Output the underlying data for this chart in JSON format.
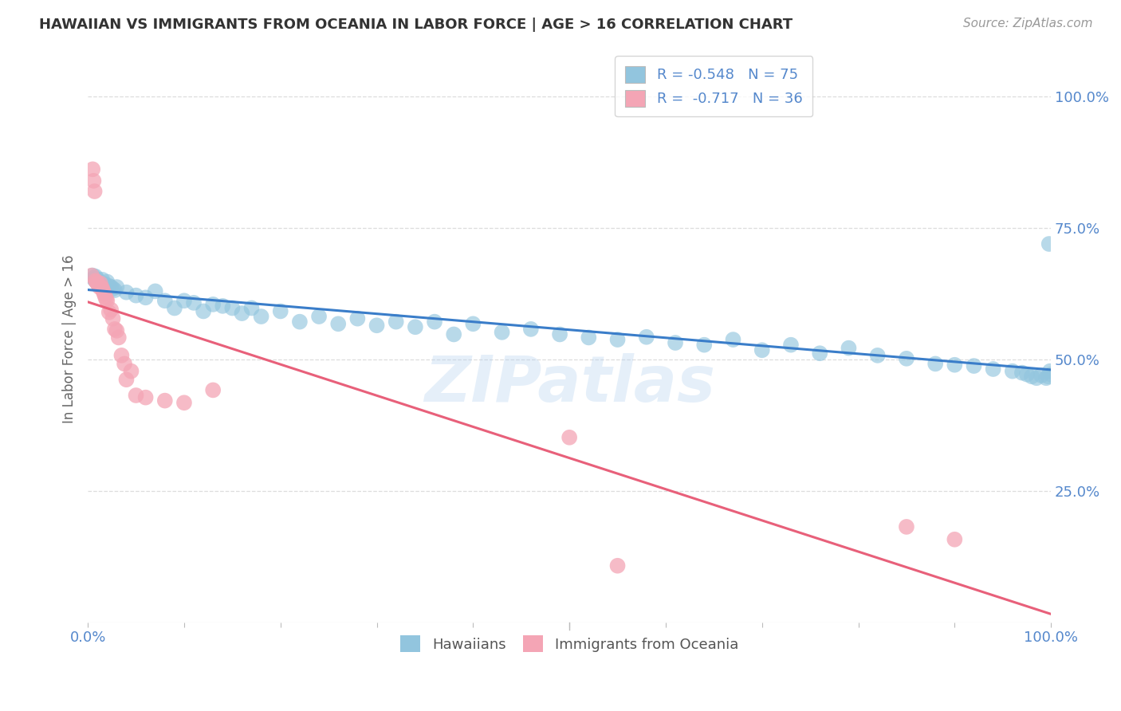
{
  "title": "HAWAIIAN VS IMMIGRANTS FROM OCEANIA IN LABOR FORCE | AGE > 16 CORRELATION CHART",
  "source": "Source: ZipAtlas.com",
  "ylabel": "In Labor Force | Age > 16",
  "legend_hawaiians": "Hawaiians",
  "legend_immigrants": "Immigrants from Oceania",
  "R_hawaiians": -0.548,
  "N_hawaiians": 75,
  "R_immigrants": -0.717,
  "N_immigrants": 36,
  "watermark": "ZIPatlas",
  "blue_color": "#92c5de",
  "pink_color": "#f4a5b5",
  "blue_line_color": "#3a7dc9",
  "pink_line_color": "#e8607a",
  "title_color": "#333333",
  "axis_label_color": "#5588cc",
  "grid_color": "#dddddd",
  "hawaiians_x": [
    0.005,
    0.006,
    0.007,
    0.008,
    0.009,
    0.01,
    0.011,
    0.012,
    0.013,
    0.015,
    0.016,
    0.017,
    0.018,
    0.02,
    0.022,
    0.024,
    0.026,
    0.028,
    0.03,
    0.04,
    0.05,
    0.06,
    0.07,
    0.08,
    0.09,
    0.1,
    0.11,
    0.12,
    0.13,
    0.14,
    0.15,
    0.16,
    0.17,
    0.18,
    0.2,
    0.22,
    0.24,
    0.26,
    0.28,
    0.3,
    0.32,
    0.34,
    0.36,
    0.38,
    0.4,
    0.43,
    0.46,
    0.49,
    0.52,
    0.55,
    0.58,
    0.61,
    0.64,
    0.67,
    0.7,
    0.73,
    0.76,
    0.79,
    0.82,
    0.85,
    0.88,
    0.9,
    0.92,
    0.94,
    0.96,
    0.97,
    0.975,
    0.98,
    0.985,
    0.99,
    0.995,
    0.997,
    0.998,
    0.999,
    1.0
  ],
  "hawaiians_y": [
    0.66,
    0.655,
    0.652,
    0.658,
    0.648,
    0.653,
    0.648,
    0.645,
    0.643,
    0.652,
    0.645,
    0.638,
    0.643,
    0.648,
    0.64,
    0.638,
    0.635,
    0.632,
    0.638,
    0.628,
    0.622,
    0.618,
    0.63,
    0.612,
    0.598,
    0.612,
    0.608,
    0.592,
    0.605,
    0.602,
    0.598,
    0.588,
    0.598,
    0.582,
    0.592,
    0.572,
    0.582,
    0.568,
    0.578,
    0.565,
    0.572,
    0.562,
    0.572,
    0.548,
    0.568,
    0.552,
    0.558,
    0.548,
    0.542,
    0.538,
    0.543,
    0.532,
    0.528,
    0.538,
    0.518,
    0.528,
    0.512,
    0.522,
    0.508,
    0.502,
    0.492,
    0.49,
    0.488,
    0.482,
    0.478,
    0.475,
    0.472,
    0.468,
    0.465,
    0.47,
    0.465,
    0.468,
    0.72,
    0.478,
    0.472
  ],
  "immigrants_x": [
    0.004,
    0.005,
    0.006,
    0.007,
    0.008,
    0.009,
    0.01,
    0.011,
    0.012,
    0.013,
    0.014,
    0.015,
    0.016,
    0.017,
    0.018,
    0.019,
    0.02,
    0.022,
    0.024,
    0.026,
    0.028,
    0.03,
    0.032,
    0.035,
    0.038,
    0.04,
    0.045,
    0.05,
    0.06,
    0.08,
    0.1,
    0.13,
    0.5,
    0.55,
    0.85,
    0.9
  ],
  "immigrants_y": [
    0.66,
    0.862,
    0.84,
    0.82,
    0.65,
    0.648,
    0.645,
    0.642,
    0.638,
    0.645,
    0.638,
    0.635,
    0.63,
    0.625,
    0.62,
    0.615,
    0.612,
    0.59,
    0.595,
    0.578,
    0.558,
    0.555,
    0.542,
    0.508,
    0.492,
    0.462,
    0.478,
    0.432,
    0.428,
    0.422,
    0.418,
    0.442,
    0.352,
    0.108,
    0.182,
    0.158
  ],
  "ytick_values": [
    1.0,
    0.75,
    0.5,
    0.25
  ],
  "ytick_labels": [
    "100.0%",
    "75.0%",
    "50.0%",
    "25.0%"
  ]
}
